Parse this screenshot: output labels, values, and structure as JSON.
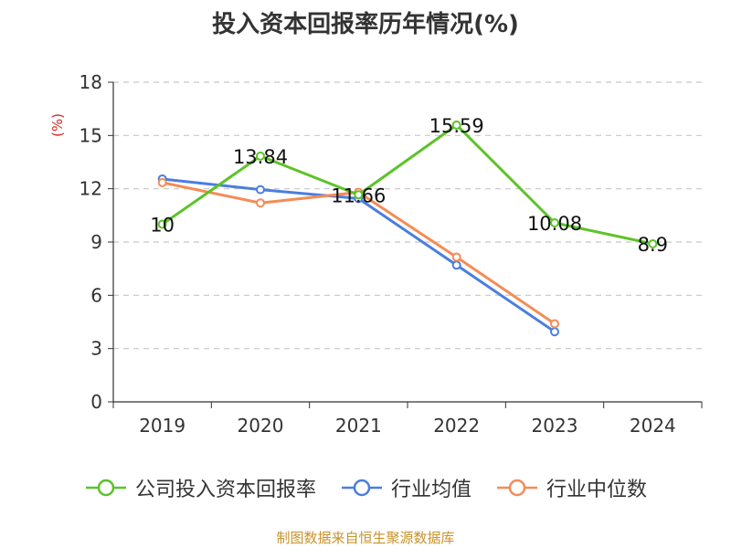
{
  "chart_data": {
    "type": "line",
    "title": "投入资本回报率历年情况(%)",
    "ylabel": "(%)",
    "xlabel": "",
    "categories": [
      "2019",
      "2020",
      "2021",
      "2022",
      "2023",
      "2024"
    ],
    "ylim": [
      0,
      18
    ],
    "yticks": [
      0,
      3,
      6,
      9,
      12,
      15,
      18
    ],
    "grid": true,
    "legend_position": "bottom",
    "series": [
      {
        "name": "公司投入资本回报率",
        "color": "#5cc328",
        "values": [
          10,
          13.84,
          11.66,
          15.59,
          10.08,
          8.9
        ],
        "labels": [
          "10",
          "13.84",
          "11.66",
          "15.59",
          "10.08",
          "8.9"
        ]
      },
      {
        "name": "行业均值",
        "color": "#4a7ee0",
        "values": [
          12.55,
          11.95,
          11.45,
          7.7,
          3.95,
          null
        ],
        "labels": []
      },
      {
        "name": "行业中位数",
        "color": "#f58b56",
        "values": [
          12.35,
          11.2,
          11.8,
          8.15,
          4.4,
          null
        ],
        "labels": []
      }
    ]
  },
  "source_text": "制图数据来自恒生聚源数据库"
}
